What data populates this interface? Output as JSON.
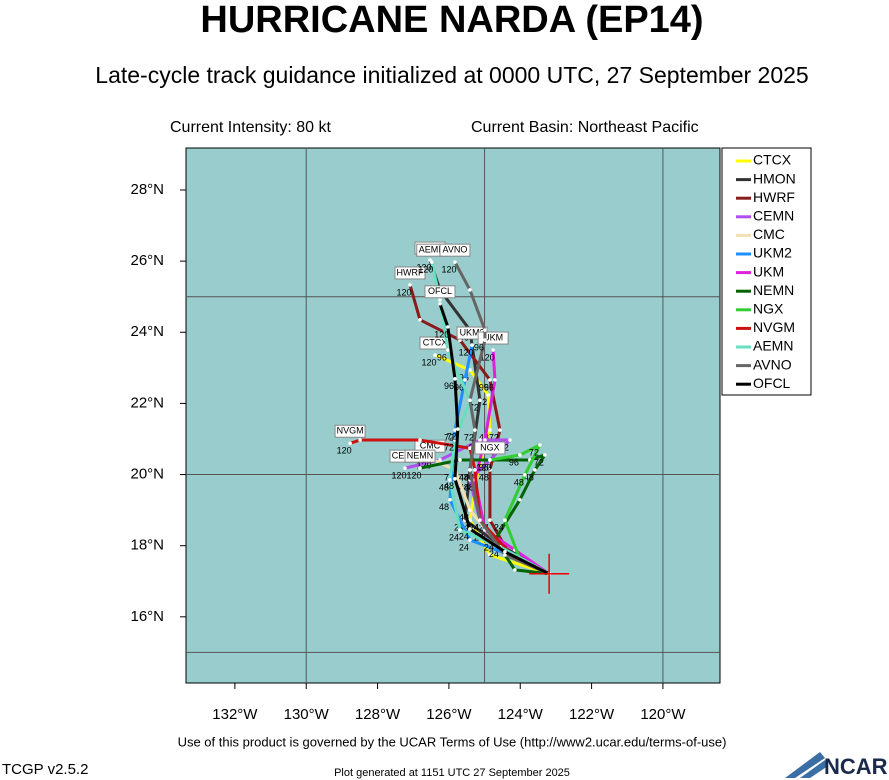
{
  "header": {
    "title": "HURRICANE NARDA (EP14)",
    "subtitle": "Late-cycle track guidance initialized at 0000 UTC, 27 September 2025",
    "intensity": "Current Intensity: 80 kt",
    "basin": "Current Basin: Northeast Pacific"
  },
  "map": {
    "lon_range": [
      -133.37,
      -118.4
    ],
    "lat_range": [
      14.14,
      29.18
    ],
    "grid_lon": [
      -130,
      -125,
      -120
    ],
    "grid_lat": [
      15,
      20,
      25
    ],
    "xticks": [
      {
        "value": -132,
        "label": "132°W"
      },
      {
        "value": -130,
        "label": "130°W"
      },
      {
        "value": -128,
        "label": "128°W"
      },
      {
        "value": -126,
        "label": "126°W"
      },
      {
        "value": -124,
        "label": "124°W"
      },
      {
        "value": -122,
        "label": "122°W"
      },
      {
        "value": -120,
        "label": "120°W"
      }
    ],
    "yticks": [
      {
        "value": 16,
        "label": "16°N"
      },
      {
        "value": 18,
        "label": "18°N"
      },
      {
        "value": 20,
        "label": "20°N"
      },
      {
        "value": 22,
        "label": "22°N"
      },
      {
        "value": 24,
        "label": "24°N"
      },
      {
        "value": 26,
        "label": "26°N"
      },
      {
        "value": 28,
        "label": "28°N"
      }
    ],
    "current_position": [
      -123.19,
      17.21
    ],
    "tracks": [
      {
        "name": "CTCX",
        "color": "#ffff00",
        "lon": [
          -123.19,
          -124.85,
          -125.41,
          -125.18,
          -124.85,
          -124.9,
          -125.41,
          -126.39
        ],
        "lat": [
          17.21,
          17.74,
          18.72,
          20.13,
          21.25,
          22.24,
          22.94,
          23.36
        ],
        "hours": [
          null,
          null,
          "24",
          null,
          "48",
          "72",
          "96",
          "120"
        ]
      },
      {
        "name": "HMON",
        "color": "#333333",
        "lon": [
          -123.19,
          -124.57,
          -125.55,
          -125.41,
          -125.13,
          -125.41,
          -126.25,
          -126.53
        ],
        "lat": [
          17.21,
          18.02,
          18.72,
          20.13,
          22.09,
          24.06,
          25.19,
          26.03
        ],
        "hours": [
          null,
          null,
          "24",
          "48",
          "72",
          "96",
          null,
          "120"
        ]
      },
      {
        "name": "HWRF",
        "color": "#8b1a1a",
        "lon": [
          -123.19,
          -124.29,
          -124.85,
          -124.85,
          -124.57,
          -124.85,
          -125.69,
          -126.81,
          -127.09
        ],
        "lat": [
          17.21,
          17.74,
          18.72,
          20.13,
          21.25,
          22.66,
          23.78,
          24.35,
          25.33
        ],
        "hours": [
          null,
          null,
          "24",
          "48",
          "72",
          "96",
          null,
          null,
          "120"
        ]
      },
      {
        "name": "CEMN",
        "color": "#b04ef0",
        "lon": [
          -123.19,
          -124.43,
          -125.13,
          -125.41,
          -124.85,
          -124.29,
          -125.13,
          -126.25,
          -127.23
        ],
        "lat": [
          17.21,
          17.88,
          18.72,
          19.85,
          20.41,
          20.97,
          20.97,
          20.41,
          20.18
        ],
        "hours": [
          null,
          null,
          "24",
          "48",
          null,
          "72",
          "96",
          null,
          "120"
        ]
      },
      {
        "name": "CMC",
        "color": "#f5deb3",
        "lon": [
          -123.19,
          -124.57,
          -125.41,
          -125.83,
          -126.53
        ],
        "lat": [
          17.21,
          17.97,
          19.0,
          20.13,
          20.46
        ],
        "hours": [
          null,
          "24",
          "48",
          "72",
          "120"
        ]
      },
      {
        "name": "UKM2",
        "color": "#1e90ff",
        "lon": [
          -123.19,
          -124.29,
          -125.41,
          -125.97,
          -125.83,
          -125.55,
          -125.35
        ],
        "lat": [
          17.21,
          17.74,
          18.16,
          19.29,
          21.25,
          22.66,
          23.64
        ],
        "hours": [
          null,
          null,
          "24",
          "48",
          "72",
          "96",
          "120"
        ]
      },
      {
        "name": "UKM",
        "color": "#e020e0",
        "lon": [
          -123.19,
          -124.15,
          -124.99,
          -125.27,
          -124.99,
          -124.71,
          -124.76
        ],
        "lat": [
          17.21,
          17.88,
          18.44,
          19.85,
          20.97,
          22.66,
          23.5
        ],
        "hours": [
          null,
          null,
          "24",
          "48",
          "72",
          "96",
          "120"
        ]
      },
      {
        "name": "NEMN",
        "color": "#006400",
        "lon": [
          -123.19,
          -124.15,
          -124.71,
          -124.01,
          -123.59,
          -123.31,
          -123.73,
          -124.85,
          -125.69,
          -126.81
        ],
        "lat": [
          17.21,
          17.32,
          18.16,
          19.29,
          20.13,
          20.55,
          20.41,
          20.41,
          20.41,
          20.18
        ],
        "hours": [
          null,
          null,
          "24",
          null,
          "48",
          "72",
          null,
          "96",
          null,
          "120"
        ]
      },
      {
        "name": "NGX",
        "color": "#32cd32",
        "lon": [
          -123.19,
          -124.01,
          -124.43,
          -123.87,
          -123.45,
          -124.01,
          -124.85
        ],
        "lat": [
          17.21,
          17.63,
          18.72,
          19.99,
          20.83,
          20.55,
          20.41
        ],
        "hours": [
          null,
          null,
          "24",
          "48",
          "72",
          "96",
          "120"
        ]
      },
      {
        "name": "NVGM",
        "color": "#cc1010",
        "lon": [
          -123.19,
          -124.15,
          -125.13,
          -125.27,
          -125.41,
          -126.81,
          -128.49,
          -128.77
        ],
        "lat": [
          17.21,
          17.63,
          18.72,
          20.13,
          20.74,
          20.97,
          20.97,
          20.88
        ],
        "hours": [
          null,
          null,
          "24",
          "48",
          null,
          null,
          null,
          "120"
        ]
      },
      {
        "name": "AEMN",
        "color": "#66e0c0",
        "lon": [
          -123.19,
          -124.57,
          -125.69,
          -125.97,
          -125.83,
          -125.41,
          -126.03,
          -126.25,
          -126.48
        ],
        "lat": [
          17.21,
          17.97,
          18.44,
          19.85,
          20.97,
          22.09,
          23.5,
          24.91,
          25.97
        ],
        "hours": [
          null,
          null,
          "24",
          "48",
          "72",
          null,
          "96",
          null,
          "120"
        ]
      },
      {
        "name": "AVNO",
        "color": "#666666",
        "lon": [
          -123.19,
          -124.43,
          -125.13,
          -125.41,
          -125.27,
          -125.41,
          -124.99,
          -124.99,
          -125.41,
          -125.83
        ],
        "lat": [
          17.21,
          17.74,
          18.72,
          20.13,
          21.25,
          22.09,
          23.78,
          24.06,
          25.19,
          25.97
        ],
        "hours": [
          null,
          null,
          "24",
          "48",
          "72",
          null,
          "96",
          null,
          null,
          "120"
        ]
      },
      {
        "name": "OFCL",
        "color": "#000000",
        "lon": [
          -123.19,
          -124.43,
          -125.41,
          -125.83,
          -125.75,
          -125.83,
          -126.03,
          -126.25
        ],
        "lat": [
          17.21,
          17.83,
          18.47,
          19.88,
          21.28,
          22.69,
          24.15,
          24.8
        ],
        "hours": [
          null,
          null,
          "24",
          "48",
          "72",
          "96",
          "120",
          null
        ]
      }
    ]
  },
  "footer": {
    "terms": "Use of this product is governed by the UCAR Terms of Use (http://www2.ucar.edu/terms-of-use)",
    "version": "TCGP v2.5.2",
    "generated": "Plot generated at 1151 UTC   27 September 2025",
    "logo": "NCAR"
  }
}
